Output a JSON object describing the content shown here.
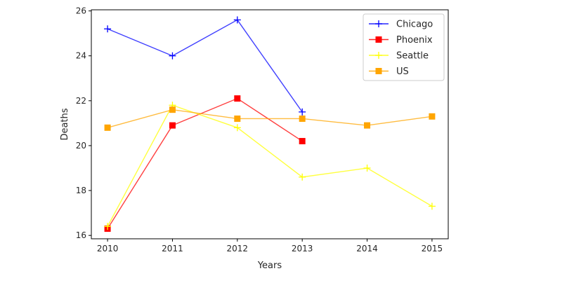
{
  "chart_data": {
    "type": "line",
    "title": "",
    "xlabel": "Years",
    "ylabel": "Deaths",
    "x": [
      2010,
      2011,
      2012,
      2013,
      2014,
      2015
    ],
    "xticks": [
      "2010",
      "2011",
      "2012",
      "2013",
      "2014",
      "2015"
    ],
    "yticks": [
      "16",
      "18",
      "20",
      "22",
      "24",
      "26"
    ],
    "xlim": [
      2009.75,
      2015.25
    ],
    "ylim": [
      15.85,
      26.05
    ],
    "grid": false,
    "legend_position": "top-right",
    "series": [
      {
        "name": "Chicago",
        "color": "#0000ff",
        "marker": "plus",
        "values": [
          25.2,
          24.0,
          25.6,
          21.5,
          null,
          null
        ]
      },
      {
        "name": "Phoenix",
        "color": "#ff0000",
        "marker": "square",
        "values": [
          16.3,
          20.9,
          22.1,
          20.2,
          null,
          null
        ]
      },
      {
        "name": "Seattle",
        "color": "#ffff00",
        "marker": "plus",
        "values": [
          16.4,
          21.8,
          20.8,
          18.6,
          19.0,
          17.3
        ]
      },
      {
        "name": "US",
        "color": "#ffa500",
        "marker": "square",
        "values": [
          20.8,
          21.6,
          21.2,
          21.2,
          20.9,
          21.3
        ]
      }
    ]
  }
}
